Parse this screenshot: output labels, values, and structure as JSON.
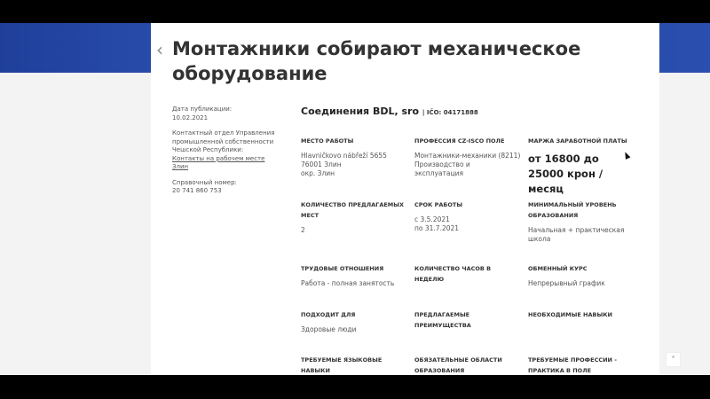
{
  "title": "Монтажники собирают механическое оборудование",
  "sidebar": {
    "date_label": "Дата публикации:",
    "date": "10.02.2021",
    "contact": "Контактный отдел Управления промышленной собственности Чешской Республики:",
    "contact_link": "Контакты на рабочем месте Злин",
    "phone_label": "Справочный номер:",
    "phone": "20 741 860 753"
  },
  "company": {
    "name": "Соединения BDL, sro",
    "ico": "| IČO: 04171888"
  },
  "fields": [
    {
      "label": "Место работы",
      "value": "Hlavničkovo nábřeží 5655\n76001 Злин\nокр. Злин"
    },
    {
      "label": "Профессия CZ-ISCO поле",
      "value": "Монтажники-механики (8211)\nПроизводство и эксплуатация"
    },
    {
      "label": "Маржа заработной платы",
      "value": "от 16800 до 25000 крон / месяц"
    },
    {
      "label": "Количество предлагаемых мест",
      "value": "2"
    },
    {
      "label": "Срок работы",
      "value": "с 3.5.2021\nпо 31.7.2021"
    },
    {
      "label": "Минимальный уровень образования",
      "value": "Начальная + практическая школа"
    },
    {
      "label": "Трудовые отношения",
      "value": "Работа - полная занятость"
    },
    {
      "label": "Количество часов в неделю",
      "value": ""
    },
    {
      "label": "Обменный курс",
      "value": "Непрерывный график"
    },
    {
      "label": "Подходит для",
      "value": "Здоровые люди"
    },
    {
      "label": "Предлагаемые преимущества",
      "value": ""
    },
    {
      "label": "Необходимые навыки",
      "value": ""
    },
    {
      "label": "Требуемые языковые навыки",
      "value": ""
    },
    {
      "label": "Обязательные области образования",
      "value": ""
    },
    {
      "label": "Требуемые профессии - практика в поле",
      "value": ""
    }
  ],
  "icons": {
    "back": "chevron-left-icon",
    "to_top": "chevron-up-icon"
  },
  "colors": {
    "banner": "#2a4fb0",
    "background": "#f3f3f3"
  }
}
